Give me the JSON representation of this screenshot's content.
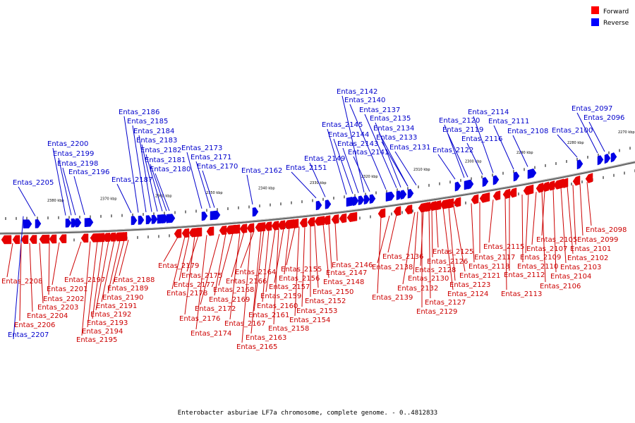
{
  "caption": "Enterobacter asburiae LF7a chromosome, complete genome. - 0..4812833",
  "legend": [
    {
      "label": "Forward",
      "color": "#ff0000"
    },
    {
      "label": "Reverse",
      "color": "#0000ff"
    }
  ],
  "colors": {
    "forward": "#e60000",
    "reverse": "#0000e6",
    "forward_label": "#cc0000",
    "reverse_label": "#0000cc",
    "backbone": "#888888"
  },
  "ticks": [
    "2380 kbp",
    "2370 kbp",
    "2360 kbp",
    "2350 kbp",
    "2340 kbp",
    "2330 kbp",
    "2320 kbp",
    "2310 kbp",
    "2300 kbp",
    "2290 kbp",
    "2280 kbp",
    "2270 kbp"
  ],
  "reverse_labels": [
    "Entas_2207",
    "Entas_2205",
    "Entas_2200",
    "Entas_2199",
    "Entas_2198",
    "Entas_2196",
    "Entas_2187",
    "Entas_2186",
    "Entas_2185",
    "Entas_2184",
    "Entas_2183",
    "Entas_2182",
    "Entas_2181",
    "Entas_2180",
    "Entas_2173",
    "Entas_2171",
    "Entas_2170",
    "Entas_2162",
    "Entas_2151",
    "Entas_2149",
    "Entas_2145",
    "Entas_2144",
    "Entas_2143",
    "Entas_2142",
    "Entas_2141",
    "Entas_2140",
    "Entas_2137",
    "Entas_2135",
    "Entas_2134",
    "Entas_2133",
    "Entas_2131",
    "Entas_2122",
    "Entas_2120",
    "Entas_2119",
    "Entas_2116",
    "Entas_2114",
    "Entas_2111",
    "Entas_2108",
    "Entas_2100",
    "Entas_2097",
    "Entas_2096"
  ],
  "forward_labels": [
    "Entas_2208",
    "Entas_2206",
    "Entas_2204",
    "Entas_2203",
    "Entas_2202",
    "Entas_2201",
    "Entas_2197",
    "Entas_2195",
    "Entas_2194",
    "Entas_2193",
    "Entas_2192",
    "Entas_2191",
    "Entas_2190",
    "Entas_2189",
    "Entas_2188",
    "Entas_2179",
    "Entas_2178",
    "Entas_2177",
    "Entas_2176",
    "Entas_2175",
    "Entas_2174",
    "Entas_2172",
    "Entas_2169",
    "Entas_2168",
    "Entas_2167",
    "Entas_2166",
    "Entas_2165",
    "Entas_2164",
    "Entas_2163",
    "Entas_2161",
    "Entas_2160",
    "Entas_2159",
    "Entas_2158",
    "Entas_2157",
    "Entas_2156",
    "Entas_2155",
    "Entas_2154",
    "Entas_2153",
    "Entas_2152",
    "Entas_2150",
    "Entas_2148",
    "Entas_2147",
    "Entas_2146",
    "Entas_2139",
    "Entas_2138",
    "Entas_2136",
    "Entas_2132",
    "Entas_2130",
    "Entas_2129",
    "Entas_2128",
    "Entas_2127",
    "Entas_2126",
    "Entas_2125",
    "Entas_2124",
    "Entas_2123",
    "Entas_2121",
    "Entas_2118",
    "Entas_2117",
    "Entas_2115",
    "Entas_2113",
    "Entas_2112",
    "Entas_2110",
    "Entas_2109",
    "Entas_2107",
    "Entas_2106",
    "Entas_2105",
    "Entas_2104",
    "Entas_2103",
    "Entas_2102",
    "Entas_2101",
    "Entas_2099",
    "Entas_2098"
  ]
}
